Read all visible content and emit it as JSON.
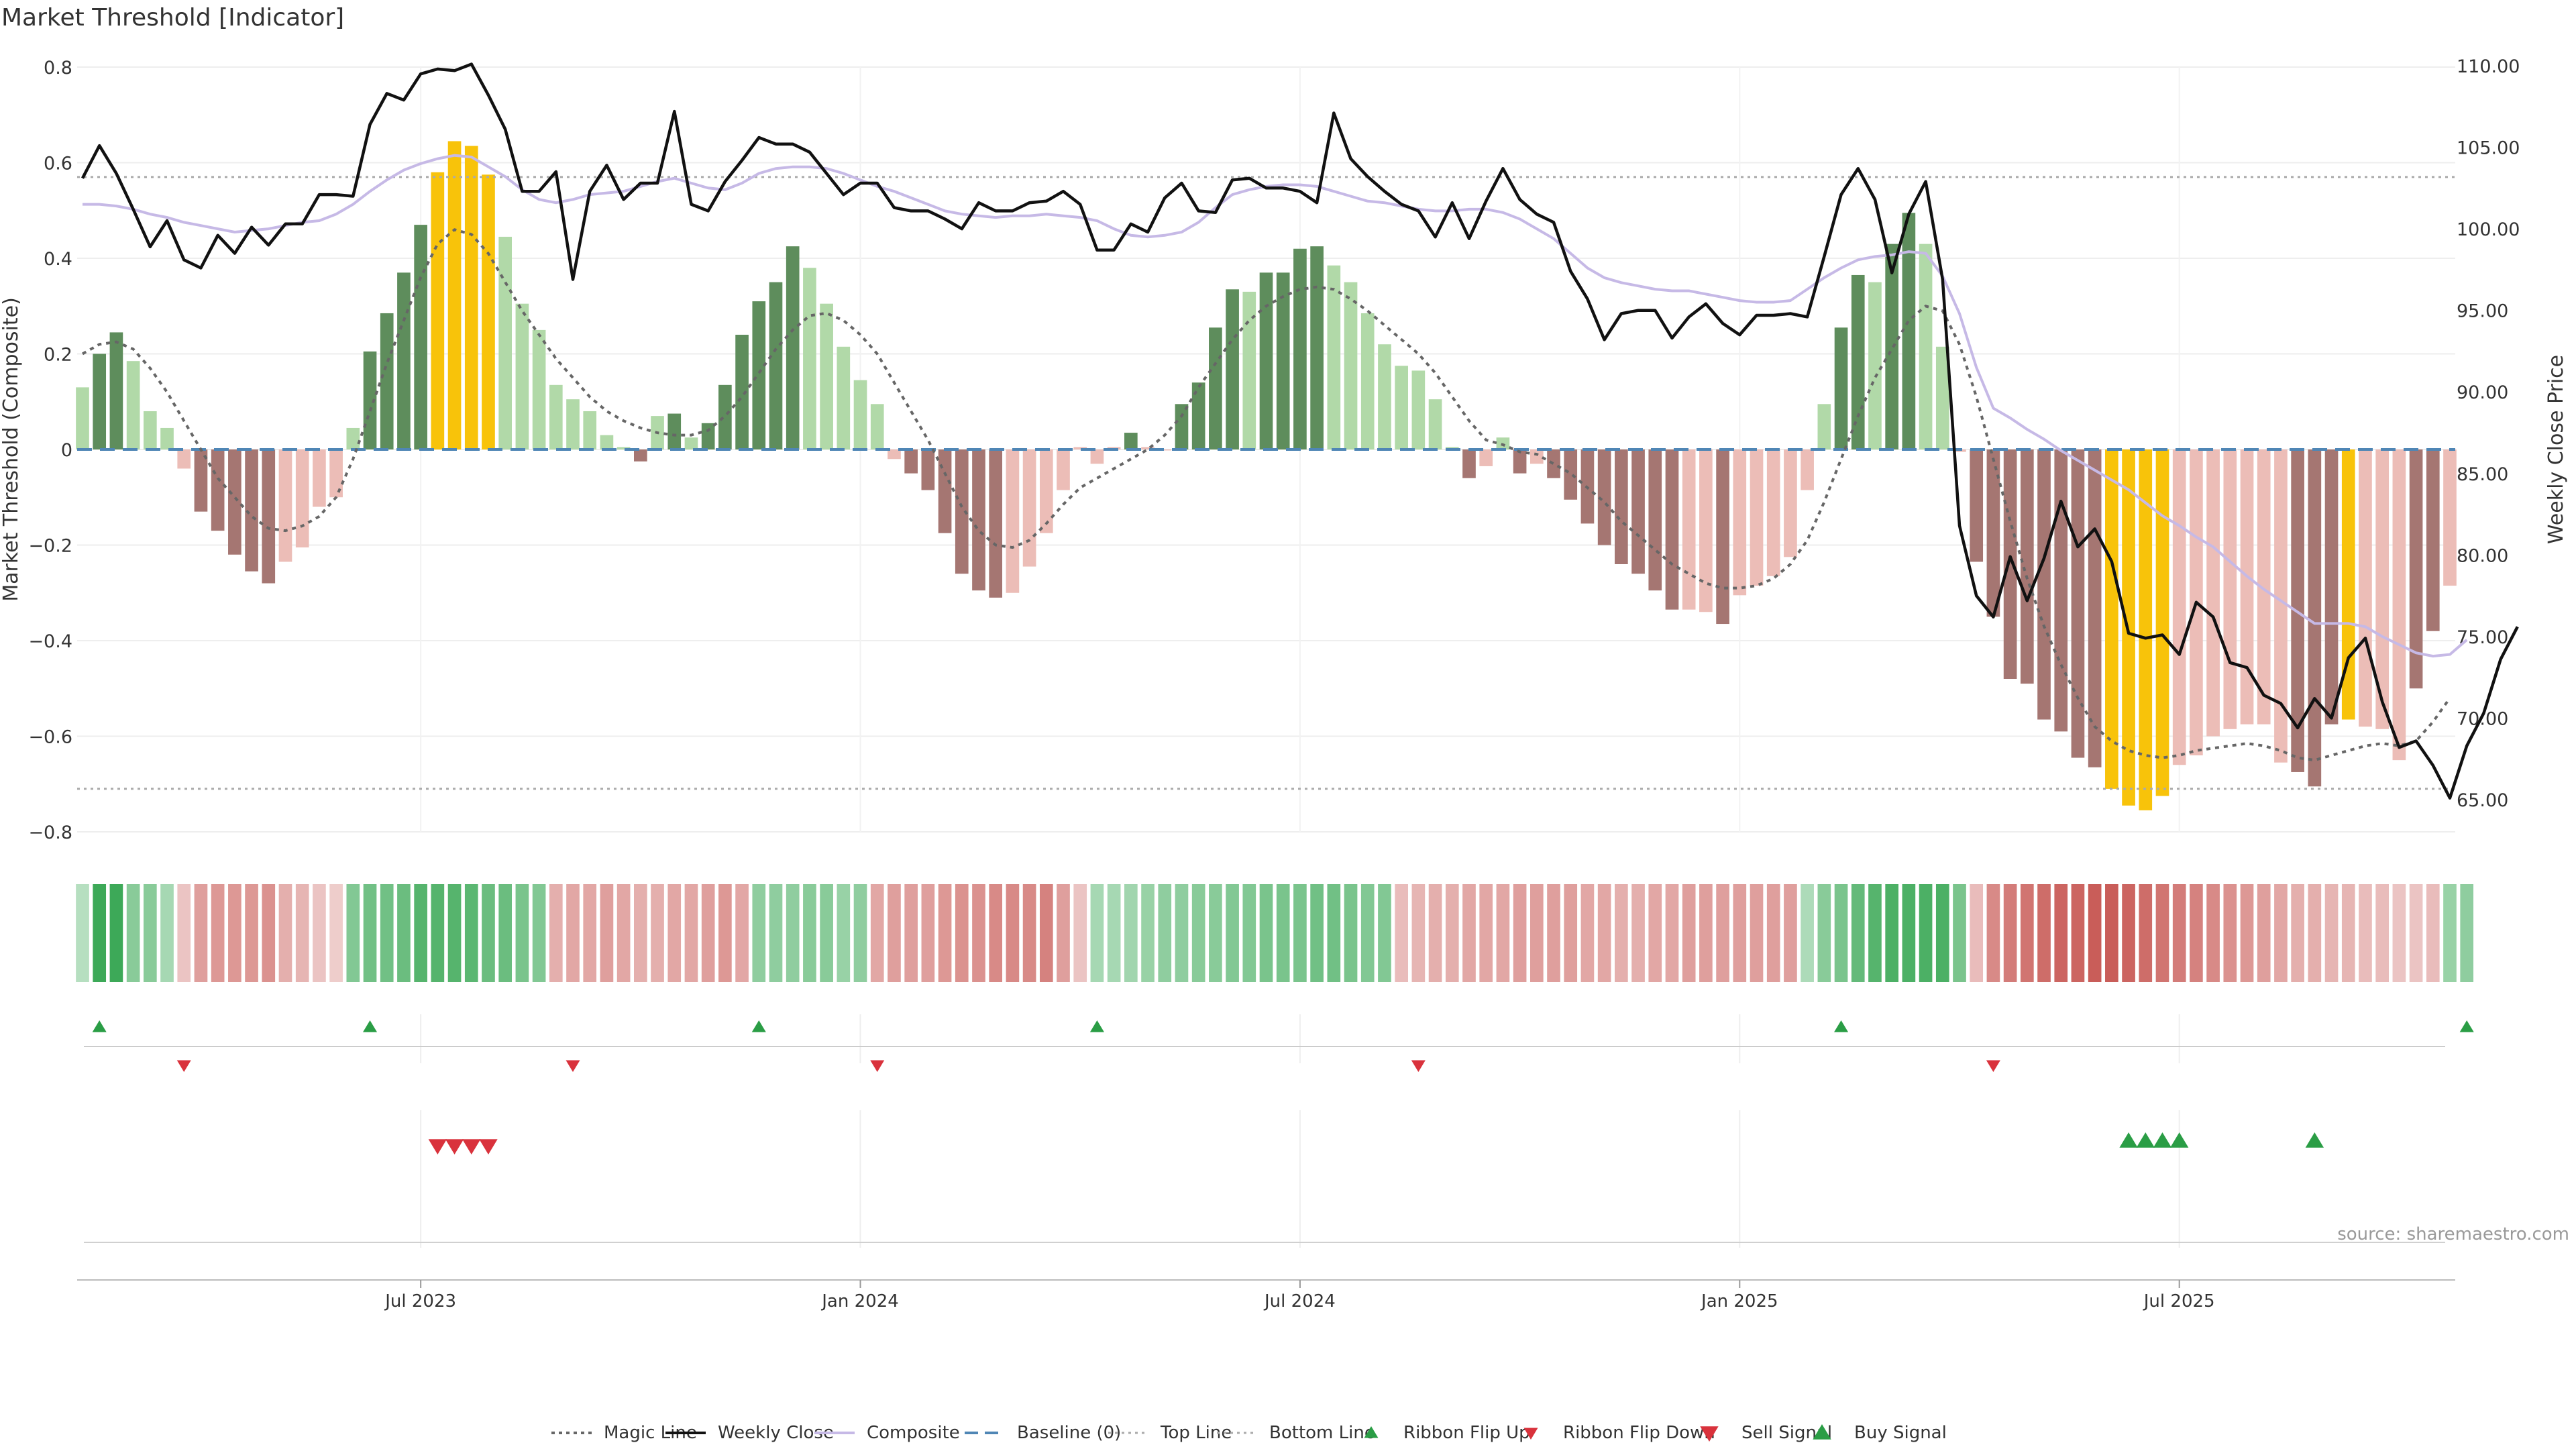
{
  "chart_data": {
    "type": "bar",
    "title": "Market Threshold [Indicator]",
    "ylabel": "Market Threshold (Composite)",
    "y2label": "Weekly Close Price",
    "ylim": [
      -0.8,
      0.8
    ],
    "y2lim": [
      65,
      110
    ],
    "yticks": [
      "0.8",
      "0.6",
      "0.4",
      "0.2",
      "0",
      "−0.2",
      "−0.4",
      "−0.6",
      "−0.8"
    ],
    "y2ticks": [
      "110.00",
      "105.00",
      "100.00",
      "95.00",
      "90.00",
      "85.00",
      "80.00",
      "75.00",
      "70.00",
      "65.00"
    ],
    "xticks": [
      {
        "label": "Jul 2023",
        "week": 20
      },
      {
        "label": "Jan 2024",
        "week": 46
      },
      {
        "label": "Jul 2024",
        "week": 72
      },
      {
        "label": "Jan 2025",
        "week": 98
      },
      {
        "label": "Jul 2025",
        "week": 124
      }
    ],
    "top_line": 0.57,
    "bottom_line": -0.71,
    "baseline": 0,
    "composite": [
      0.13,
      0.2,
      0.245,
      0.185,
      0.08,
      0.045,
      -0.04,
      -0.13,
      -0.17,
      -0.22,
      -0.255,
      -0.28,
      -0.235,
      -0.205,
      -0.12,
      -0.1,
      0.045,
      0.205,
      0.285,
      0.37,
      0.47,
      0.58,
      0.645,
      0.635,
      0.575,
      0.445,
      0.305,
      0.25,
      0.135,
      0.105,
      0.08,
      0.03,
      0.005,
      -0.025,
      0.07,
      0.075,
      0.025,
      0.055,
      0.135,
      0.24,
      0.31,
      0.35,
      0.425,
      0.38,
      0.305,
      0.215,
      0.145,
      0.095,
      -0.02,
      -0.05,
      -0.085,
      -0.175,
      -0.26,
      -0.295,
      -0.31,
      -0.3,
      -0.245,
      -0.175,
      -0.085,
      0.005,
      -0.03,
      0.005,
      0.035,
      0.005,
      0.0,
      0.095,
      0.14,
      0.255,
      0.335,
      0.33,
      0.37,
      0.37,
      0.42,
      0.425,
      0.385,
      0.35,
      0.285,
      0.22,
      0.175,
      0.165,
      0.105,
      0.005,
      -0.06,
      -0.035,
      0.025,
      -0.05,
      -0.03,
      -0.06,
      -0.105,
      -0.155,
      -0.2,
      -0.24,
      -0.26,
      -0.295,
      -0.335,
      -0.335,
      -0.34,
      -0.365,
      -0.305,
      -0.285,
      -0.265,
      -0.225,
      -0.085,
      0.095,
      0.255,
      0.365,
      0.35,
      0.43,
      0.495,
      0.43,
      0.215,
      -0.005,
      -0.235,
      -0.35,
      -0.48,
      -0.49,
      -0.565,
      -0.59,
      -0.645,
      -0.665,
      -0.71,
      -0.745,
      -0.755,
      -0.725,
      -0.66,
      -0.64,
      -0.6,
      -0.585,
      -0.575,
      -0.575,
      -0.655,
      -0.675,
      -0.705,
      -0.575,
      -0.565,
      -0.58,
      -0.585,
      -0.65,
      -0.5,
      -0.38,
      -0.285
    ],
    "bar_colors": [
      "lightgreen",
      "darkgreen",
      "darkgreen",
      "lightgreen",
      "lightgreen",
      "lightgreen",
      "lightred",
      "darkred",
      "darkred",
      "darkred",
      "darkred",
      "darkred",
      "lightred",
      "lightred",
      "lightred",
      "lightred",
      "lightgreen",
      "darkgreen",
      "darkgreen",
      "darkgreen",
      "darkgreen",
      "gold",
      "gold",
      "gold",
      "gold",
      "lightgreen",
      "lightgreen",
      "lightgreen",
      "lightgreen",
      "lightgreen",
      "lightgreen",
      "lightgreen",
      "lightgreen",
      "darkred",
      "lightgreen",
      "darkgreen",
      "lightgreen",
      "darkgreen",
      "darkgreen",
      "darkgreen",
      "darkgreen",
      "darkgreen",
      "darkgreen",
      "lightgreen",
      "lightgreen",
      "lightgreen",
      "lightgreen",
      "lightgreen",
      "lightred",
      "darkred",
      "darkred",
      "darkred",
      "darkred",
      "darkred",
      "darkred",
      "lightred",
      "lightred",
      "lightred",
      "lightred",
      "lightred",
      "lightred",
      "lightred",
      "darkgreen",
      "lightred",
      "lightred",
      "darkgreen",
      "darkgreen",
      "darkgreen",
      "darkgreen",
      "lightgreen",
      "darkgreen",
      "darkgreen",
      "darkgreen",
      "darkgreen",
      "lightgreen",
      "lightgreen",
      "lightgreen",
      "lightgreen",
      "lightgreen",
      "lightgreen",
      "lightgreen",
      "lightgreen",
      "darkred",
      "lightred",
      "lightgreen",
      "darkred",
      "lightred",
      "darkred",
      "darkred",
      "darkred",
      "darkred",
      "darkred",
      "darkred",
      "darkred",
      "darkred",
      "lightred",
      "lightred",
      "darkred",
      "lightred",
      "lightred",
      "lightred",
      "lightred",
      "lightred",
      "lightgreen",
      "darkgreen",
      "darkgreen",
      "lightgreen",
      "darkgreen",
      "darkgreen",
      "lightgreen",
      "lightgreen",
      "lightred",
      "darkred",
      "darkred",
      "darkred",
      "darkred",
      "darkred",
      "darkred",
      "darkred",
      "darkred",
      "gold",
      "gold",
      "gold",
      "gold",
      "lightred",
      "lightred",
      "lightred",
      "lightred",
      "lightred",
      "lightred",
      "lightred",
      "darkred",
      "darkred",
      "darkred",
      "gold",
      "lightred",
      "lightred",
      "lightred",
      "darkred",
      "darkred",
      "lightred",
      "darkred",
      "lightred",
      "lightred"
    ],
    "magic_line": [
      0.2,
      0.22,
      0.225,
      0.21,
      0.17,
      0.12,
      0.06,
      0.0,
      -0.06,
      -0.1,
      -0.14,
      -0.165,
      -0.17,
      -0.16,
      -0.14,
      -0.1,
      -0.02,
      0.08,
      0.18,
      0.27,
      0.36,
      0.43,
      0.46,
      0.45,
      0.41,
      0.35,
      0.29,
      0.24,
      0.19,
      0.15,
      0.11,
      0.08,
      0.06,
      0.045,
      0.035,
      0.03,
      0.03,
      0.04,
      0.07,
      0.11,
      0.16,
      0.21,
      0.25,
      0.28,
      0.285,
      0.27,
      0.24,
      0.2,
      0.14,
      0.08,
      0.02,
      -0.05,
      -0.12,
      -0.17,
      -0.2,
      -0.205,
      -0.19,
      -0.155,
      -0.115,
      -0.08,
      -0.06,
      -0.04,
      -0.02,
      0.0,
      0.03,
      0.07,
      0.13,
      0.18,
      0.23,
      0.27,
      0.3,
      0.32,
      0.335,
      0.34,
      0.335,
      0.315,
      0.29,
      0.26,
      0.23,
      0.2,
      0.16,
      0.11,
      0.06,
      0.02,
      0.01,
      -0.005,
      -0.01,
      -0.03,
      -0.05,
      -0.08,
      -0.11,
      -0.15,
      -0.18,
      -0.21,
      -0.24,
      -0.26,
      -0.28,
      -0.29,
      -0.29,
      -0.285,
      -0.27,
      -0.24,
      -0.19,
      -0.11,
      -0.02,
      0.07,
      0.15,
      0.21,
      0.27,
      0.3,
      0.29,
      0.22,
      0.11,
      -0.02,
      -0.15,
      -0.27,
      -0.37,
      -0.45,
      -0.52,
      -0.58,
      -0.61,
      -0.63,
      -0.64,
      -0.645,
      -0.64,
      -0.63,
      -0.625,
      -0.62,
      -0.615,
      -0.62,
      -0.63,
      -0.645,
      -0.65,
      -0.64,
      -0.63,
      -0.62,
      -0.615,
      -0.62,
      -0.61,
      -0.57,
      -0.52
    ],
    "composite_line": [
      101.5,
      101.5,
      101.4,
      101.2,
      100.9,
      100.7,
      100.4,
      100.2,
      100.0,
      99.8,
      99.9,
      100.0,
      100.2,
      100.4,
      100.5,
      100.9,
      101.5,
      102.3,
      103.0,
      103.6,
      104.0,
      104.3,
      104.5,
      104.4,
      103.8,
      103.2,
      102.4,
      101.8,
      101.6,
      101.8,
      102.1,
      102.2,
      102.3,
      102.6,
      102.9,
      103.1,
      102.8,
      102.5,
      102.4,
      102.8,
      103.4,
      103.7,
      103.8,
      103.8,
      103.7,
      103.4,
      103.0,
      102.6,
      102.3,
      101.9,
      101.5,
      101.1,
      100.9,
      100.8,
      100.7,
      100.8,
      100.8,
      100.9,
      100.8,
      100.7,
      100.5,
      100.0,
      99.6,
      99.5,
      99.6,
      99.8,
      100.4,
      101.3,
      102.1,
      102.4,
      102.6,
      102.7,
      102.7,
      102.6,
      102.3,
      102.0,
      101.7,
      101.6,
      101.4,
      101.2,
      101.1,
      101.1,
      101.2,
      101.2,
      101.0,
      100.6,
      100.0,
      99.4,
      98.5,
      97.6,
      97.0,
      96.7,
      96.5,
      96.3,
      96.2,
      96.2,
      96.0,
      95.8,
      95.6,
      95.5,
      95.5,
      95.6,
      96.3,
      97.0,
      97.6,
      98.1,
      98.3,
      98.4,
      98.6,
      98.5,
      97.1,
      94.8,
      91.5,
      89.0,
      88.4,
      87.7,
      87.1,
      86.4,
      85.8,
      85.2,
      84.6,
      84.0,
      83.2,
      82.4,
      81.8,
      81.1,
      80.5,
      79.6,
      78.7,
      77.9,
      77.2,
      76.5,
      75.8,
      75.8,
      75.8,
      75.6,
      75.0,
      74.5,
      74.0,
      73.8,
      73.9,
      74.8
    ],
    "weekly_close": [
      103.1,
      105.1,
      103.4,
      101.2,
      98.9,
      100.5,
      98.1,
      97.6,
      99.6,
      98.5,
      100.1,
      99.0,
      100.3,
      100.3,
      102.1,
      102.1,
      102.0,
      106.4,
      108.3,
      107.9,
      109.5,
      109.8,
      109.7,
      110.1,
      108.2,
      106.1,
      102.3,
      102.3,
      103.5,
      96.9,
      102.3,
      103.9,
      101.8,
      102.8,
      102.8,
      107.2,
      101.5,
      101.1,
      102.9,
      104.2,
      105.6,
      105.2,
      105.2,
      104.7,
      103.4,
      102.1,
      102.8,
      102.8,
      101.3,
      101.1,
      101.1,
      100.6,
      100.0,
      101.6,
      101.1,
      101.1,
      101.6,
      101.7,
      102.3,
      101.5,
      98.7,
      98.7,
      100.3,
      99.8,
      101.9,
      102.8,
      101.1,
      101.0,
      103.0,
      103.1,
      102.5,
      102.5,
      102.3,
      101.6,
      107.1,
      104.3,
      103.2,
      102.3,
      101.5,
      101.1,
      99.5,
      101.6,
      99.4,
      101.7,
      103.7,
      101.8,
      100.9,
      100.4,
      97.4,
      95.7,
      93.2,
      94.8,
      95.0,
      95.0,
      93.3,
      94.6,
      95.4,
      94.2,
      93.5,
      94.7,
      94.7,
      94.8,
      94.6,
      98.3,
      102.1,
      103.7,
      101.8,
      97.3,
      100.9,
      102.9,
      96.9,
      81.8,
      77.5,
      76.2,
      79.9,
      77.2,
      79.8,
      83.3,
      80.5,
      81.6,
      79.6,
      75.2,
      74.9,
      75.1,
      73.9,
      77.1,
      76.2,
      73.4,
      73.1,
      71.4,
      70.9,
      69.4,
      71.2,
      70.0,
      73.7,
      74.9,
      71.0,
      68.2,
      68.6,
      67.1,
      65.1,
      68.3,
      70.3,
      73.6,
      75.6
    ],
    "ribbon_green": [
      0.2,
      1.0,
      1.0,
      0.5,
      0.5,
      0.3,
      -0.2,
      -0.45,
      -0.5,
      -0.5,
      -0.5,
      -0.55,
      -0.35,
      -0.3,
      -0.2,
      -0.15,
      0.55,
      0.65,
      0.65,
      0.7,
      0.85,
      0.85,
      0.85,
      0.8,
      0.7,
      0.7,
      0.6,
      0.55,
      -0.35,
      -0.4,
      -0.4,
      -0.45,
      -0.4,
      -0.35,
      -0.35,
      -0.4,
      -0.4,
      -0.45,
      -0.5,
      -0.4,
      0.45,
      0.45,
      0.45,
      0.5,
      0.5,
      0.4,
      0.45,
      -0.4,
      -0.45,
      -0.45,
      -0.45,
      -0.5,
      -0.55,
      -0.55,
      -0.6,
      -0.6,
      -0.6,
      -0.65,
      -0.45,
      -0.2,
      0.3,
      0.3,
      0.35,
      0.4,
      0.45,
      0.45,
      0.5,
      0.5,
      0.55,
      0.55,
      0.6,
      0.6,
      0.6,
      0.65,
      0.65,
      0.6,
      0.55,
      0.55,
      -0.25,
      -0.3,
      -0.35,
      -0.35,
      -0.4,
      -0.4,
      -0.4,
      -0.45,
      -0.45,
      -0.45,
      -0.45,
      -0.4,
      -0.4,
      -0.35,
      -0.35,
      -0.4,
      -0.4,
      -0.45,
      -0.45,
      -0.45,
      -0.45,
      -0.45,
      -0.45,
      -0.45,
      0.25,
      0.5,
      0.6,
      0.75,
      0.85,
      0.9,
      0.9,
      0.9,
      0.9,
      0.6,
      -0.25,
      -0.6,
      -0.7,
      -0.75,
      -0.8,
      -0.85,
      -0.85,
      -0.9,
      -0.9,
      -0.85,
      -0.8,
      -0.75,
      -0.7,
      -0.65,
      -0.6,
      -0.55,
      -0.5,
      -0.45,
      -0.4,
      -0.35,
      -0.35,
      -0.3,
      -0.3,
      -0.25,
      -0.25,
      -0.2,
      -0.2,
      -0.25,
      0.4,
      0.45
    ],
    "ribbon_flip_up": [
      1,
      17,
      40,
      60,
      104,
      141
    ],
    "ribbon_flip_down": [
      6,
      29,
      47,
      79,
      113
    ],
    "sell_signal": [
      21,
      22,
      23,
      24
    ],
    "buy_signal": [
      121,
      122,
      123,
      124,
      132
    ],
    "legend": [
      {
        "label": "Magic Line",
        "marker": "dotted-line"
      },
      {
        "label": "Weekly Close",
        "marker": "solid-line"
      },
      {
        "label": "Composite",
        "marker": "lavender-line"
      },
      {
        "label": "Baseline (0)",
        "marker": "dashed-line"
      },
      {
        "label": "Top Line",
        "marker": "light-dotted-line"
      },
      {
        "label": "Bottom Line",
        "marker": "light-dotted-line"
      },
      {
        "label": "Ribbon Flip Up",
        "marker": "green-triangle-up"
      },
      {
        "label": "Ribbon Flip Down",
        "marker": "red-triangle-down"
      },
      {
        "label": "Sell Signal",
        "marker": "red-triangle-down-large"
      },
      {
        "label": "Buy Signal",
        "marker": "green-triangle-up-large"
      }
    ],
    "source": "source: sharemaestro.com"
  },
  "colors": {
    "darkgreen": "#5e8d5c",
    "lightgreen": "#b1d9a8",
    "darkred": "#a57672",
    "lightred": "#ecbdb7",
    "gold": "#f8c30a",
    "close": "#111111",
    "composite_line": "#c6b9e6",
    "magic": "#666666",
    "baseline": "#4f86b5",
    "signal_green": "#2a9d45",
    "signal_red": "#d9323c"
  }
}
